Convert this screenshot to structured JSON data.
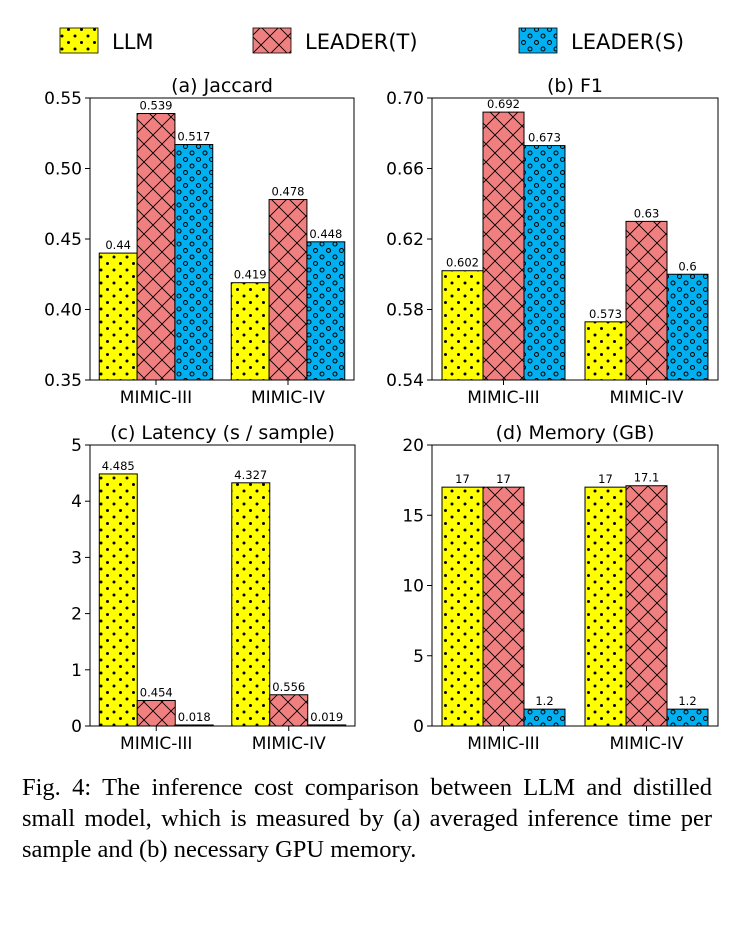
{
  "figure": {
    "caption": "Fig. 4: The inference cost comparison between LLM and distilled small model, which is measured by (a) averaged inference time per sample and (b) necessary GPU memory."
  },
  "legend": [
    {
      "name": "LLM",
      "color": "#ffff00",
      "pattern": "dots"
    },
    {
      "name": "LEADER(T)",
      "color": "#f08080",
      "pattern": "crosshatch"
    },
    {
      "name": "LEADER(S)",
      "color": "#00b0f0",
      "pattern": "circles"
    }
  ],
  "chart_data": [
    {
      "type": "bar",
      "title": "(a) Jaccard",
      "categories": [
        "MIMIC-III",
        "MIMIC-IV"
      ],
      "series": [
        {
          "name": "LLM",
          "values": [
            0.44,
            0.419
          ],
          "labels": [
            "0.44",
            "0.419"
          ]
        },
        {
          "name": "LEADER(T)",
          "values": [
            0.539,
            0.478
          ],
          "labels": [
            "0.539",
            "0.478"
          ]
        },
        {
          "name": "LEADER(S)",
          "values": [
            0.517,
            0.448
          ],
          "labels": [
            "0.517",
            "0.448"
          ]
        }
      ],
      "ylim": [
        0.35,
        0.55
      ],
      "yticks": [
        "0.35",
        "0.40",
        "0.45",
        "0.50",
        "0.55"
      ],
      "xlabel": "",
      "ylabel": ""
    },
    {
      "type": "bar",
      "title": "(b) F1",
      "categories": [
        "MIMIC-III",
        "MIMIC-IV"
      ],
      "series": [
        {
          "name": "LLM",
          "values": [
            0.602,
            0.573
          ],
          "labels": [
            "0.602",
            "0.573"
          ]
        },
        {
          "name": "LEADER(T)",
          "values": [
            0.692,
            0.63
          ],
          "labels": [
            "0.692",
            "0.63"
          ]
        },
        {
          "name": "LEADER(S)",
          "values": [
            0.673,
            0.6
          ],
          "labels": [
            "0.673",
            "0.6"
          ]
        }
      ],
      "ylim": [
        0.54,
        0.7
      ],
      "yticks": [
        "0.54",
        "0.58",
        "0.62",
        "0.66",
        "0.70"
      ],
      "xlabel": "",
      "ylabel": ""
    },
    {
      "type": "bar",
      "title": "(c) Latency (s / sample)",
      "categories": [
        "MIMIC-III",
        "MIMIC-IV"
      ],
      "series": [
        {
          "name": "LLM",
          "values": [
            4.485,
            4.327
          ],
          "labels": [
            "4.485",
            "4.327"
          ]
        },
        {
          "name": "LEADER(T)",
          "values": [
            0.454,
            0.556
          ],
          "labels": [
            "0.454",
            "0.556"
          ]
        },
        {
          "name": "LEADER(S)",
          "values": [
            0.018,
            0.019
          ],
          "labels": [
            "0.018",
            "0.019"
          ]
        }
      ],
      "ylim": [
        0,
        5
      ],
      "yticks": [
        "0",
        "1",
        "2",
        "3",
        "4",
        "5"
      ],
      "xlabel": "",
      "ylabel": ""
    },
    {
      "type": "bar",
      "title": "(d) Memory (GB)",
      "categories": [
        "MIMIC-III",
        "MIMIC-IV"
      ],
      "series": [
        {
          "name": "LLM",
          "values": [
            17,
            17
          ],
          "labels": [
            "17",
            "17"
          ]
        },
        {
          "name": "LEADER(T)",
          "values": [
            17,
            17.1
          ],
          "labels": [
            "17",
            "17.1"
          ]
        },
        {
          "name": "LEADER(S)",
          "values": [
            1.2,
            1.2
          ],
          "labels": [
            "1.2",
            "1.2"
          ]
        }
      ],
      "ylim": [
        0,
        20
      ],
      "yticks": [
        "0",
        "5",
        "10",
        "15",
        "20"
      ],
      "xlabel": "",
      "ylabel": ""
    }
  ]
}
